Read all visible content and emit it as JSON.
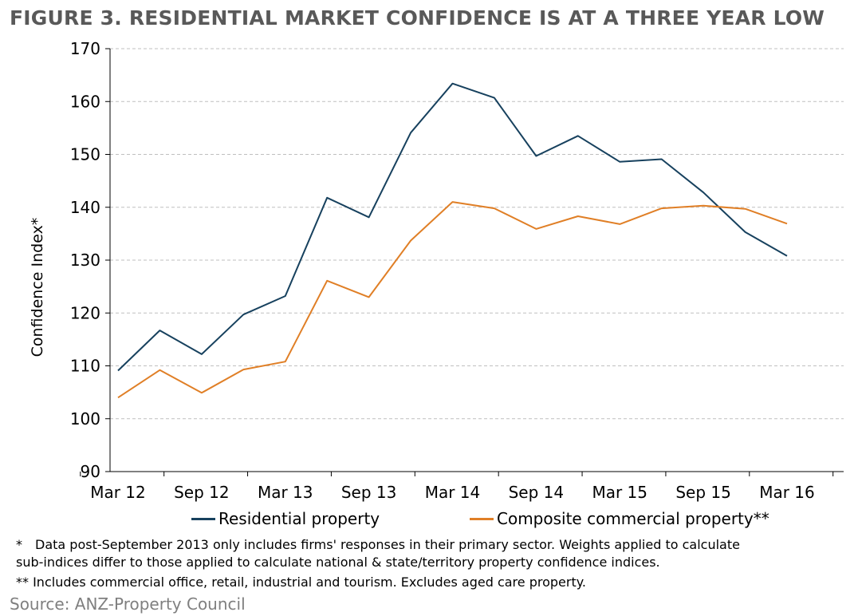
{
  "title": "FIGURE 3. RESIDENTIAL MARKET CONFIDENCE IS AT A THREE YEAR LOW",
  "footnotes": {
    "note1_marker": "*",
    "note1_line1": "Data post-September 2013 only includes firms' responses in their primary  sector. Weights applied to calculate",
    "note1_line2": "sub-indices differ to those applied to calculate national & state/territory property confidence indices.",
    "note2": "** Includes commercial office, retail, industrial and tourism. Excludes aged care property."
  },
  "source": "Source: ANZ-Property Council",
  "colors": {
    "residential": "#17415e",
    "commercial": "#e07f26",
    "grid": "#bfbfbf",
    "axis": "#000000"
  },
  "chart_data": {
    "type": "line",
    "title": "FIGURE 3. RESIDENTIAL MARKET CONFIDENCE IS AT A THREE YEAR LOW",
    "ylabel": "Confidence Index*",
    "xlabel": "",
    "ylim": [
      90,
      170
    ],
    "yticks": [
      90,
      100,
      110,
      120,
      130,
      140,
      150,
      160,
      170
    ],
    "categories": [
      "Mar 12",
      "Jun 12",
      "Sep 12",
      "Dec 12",
      "Mar 13",
      "Jun 13",
      "Sep 13",
      "Dec 13",
      "Mar 14",
      "Jun 14",
      "Sep 14",
      "Dec 14",
      "Mar 15",
      "Jun 15",
      "Sep 15",
      "Dec 15",
      "Mar 16"
    ],
    "xtick_labels": [
      "Mar 12",
      "Sep 12",
      "Mar 13",
      "Sep 13",
      "Mar 14",
      "Sep 14",
      "Mar 15",
      "Sep 15",
      "Mar 16"
    ],
    "grid": "horizontal dashed",
    "legend": "bottom",
    "series": [
      {
        "name": "Residential property",
        "values": [
          109.1,
          116.7,
          112.2,
          119.7,
          123.2,
          141.8,
          138.1,
          154.1,
          163.4,
          160.7,
          149.7,
          153.5,
          148.6,
          149.1,
          142.8,
          135.3,
          130.8
        ]
      },
      {
        "name": "Composite commercial property**",
        "values": [
          104.0,
          109.2,
          104.9,
          109.3,
          110.8,
          126.1,
          123.0,
          133.7,
          141.0,
          139.8,
          135.9,
          138.3,
          136.8,
          139.8,
          140.3,
          139.7,
          136.9
        ]
      }
    ]
  }
}
